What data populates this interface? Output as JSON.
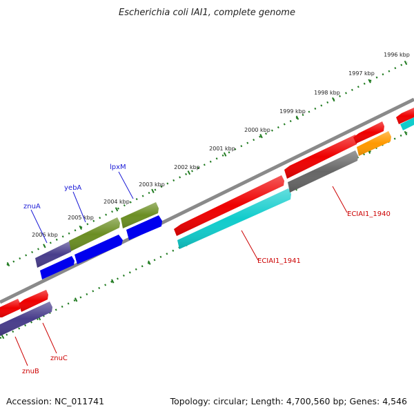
{
  "title": "Escherichia coli IAI1, complete genome",
  "footer": {
    "accession": "Accession: NC_011741",
    "topology": "Topology: circular; Length: 4,700,560 bp; Genes: 4,546"
  },
  "ticks": [
    "1996 kbp",
    "1997 kbp",
    "1998 kbp",
    "1999 kbp",
    "2000 kbp",
    "2001 kbp",
    "2002 kbp",
    "2003 kbp",
    "2004 kbp",
    "2005 kbp",
    "2006 kbp"
  ],
  "gene_labels": {
    "znuA": "znuA",
    "yebA": "yebA",
    "lpxM": "lpxM",
    "znuB": "znuB",
    "znuC": "znuC",
    "ECIAI1_1940": "ECIAI1_1940",
    "ECIAI1_1941": "ECIAI1_1941"
  },
  "colors": {
    "backbone": "#8a8a8a",
    "tick": "#1f7a1f",
    "red": "#ee0000",
    "cyan": "#11cccc",
    "blue": "#0000ee",
    "olive": "#6b8e23",
    "slate": "#483d8b",
    "gray": "#666666",
    "orange": "#ff9900",
    "label_blue": "#1a1ad6",
    "label_red": "#cc0000"
  }
}
